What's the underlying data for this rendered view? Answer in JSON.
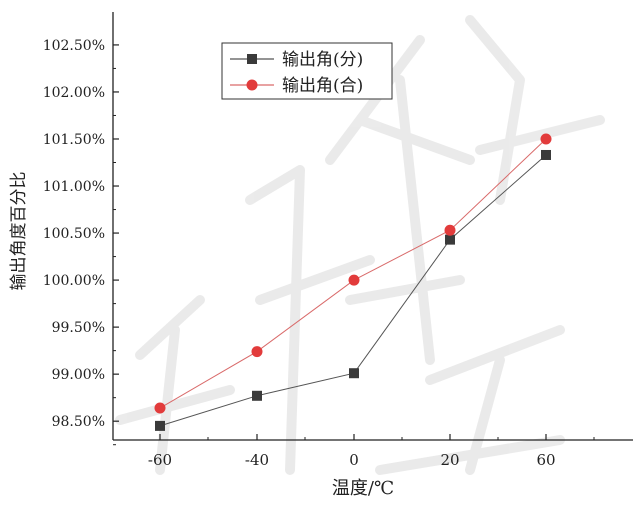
{
  "chart_data": {
    "type": "line",
    "title": "",
    "xlabel": "温度/℃",
    "ylabel": "输出角度百分比",
    "x_ticks": [
      "-60",
      "-40",
      "0",
      "20",
      "60"
    ],
    "y_ticks": [
      "98.50%",
      "99.00%",
      "99.50%",
      "100.00%",
      "100.50%",
      "101.00%",
      "101.50%",
      "102.00%",
      "102.50%"
    ],
    "y_tick_values": [
      98.5,
      99.0,
      99.5,
      100.0,
      100.5,
      101.0,
      101.5,
      102.0,
      102.5
    ],
    "ylim": [
      98.3,
      102.85
    ],
    "x_positions": [
      0,
      1,
      2,
      3,
      4
    ],
    "legend_position": "top-left",
    "grid": false,
    "series": [
      {
        "name": "输出角(分)",
        "marker": "square",
        "color": "#3a3a3a",
        "line_color": "#555555",
        "values": [
          98.45,
          98.77,
          99.01,
          100.43,
          101.33
        ]
      },
      {
        "name": "输出角(合)",
        "marker": "circle",
        "color": "#e23b3b",
        "line_color": "#d96a6a",
        "values": [
          98.64,
          99.24,
          100.0,
          100.53,
          101.5
        ]
      }
    ]
  }
}
